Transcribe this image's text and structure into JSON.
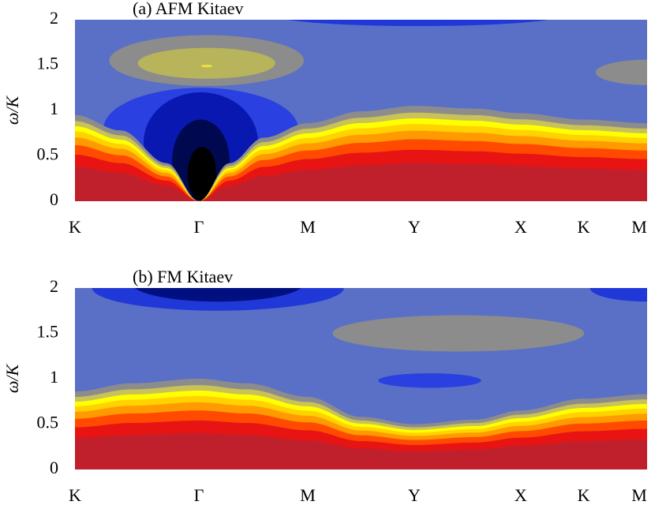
{
  "chart_data": [
    {
      "type": "contour",
      "title": "(a) AFM Kitaev",
      "y_label": "ω/K",
      "categories": [
        "K",
        "Γ",
        "M",
        "Y",
        "X",
        "K",
        "M"
      ],
      "ylim": [
        0,
        2
      ],
      "yticks": [
        0,
        0.5,
        1,
        1.5,
        2
      ],
      "grid": false
    },
    {
      "type": "contour",
      "title": "(b) FM Kitaev",
      "y_label": "ω/K",
      "categories": [
        "K",
        "Γ",
        "M",
        "Y",
        "X",
        "K",
        "M"
      ],
      "ylim": [
        0,
        2
      ],
      "yticks": [
        0,
        0.5,
        1,
        1.5,
        2
      ],
      "grid": false
    }
  ]
}
